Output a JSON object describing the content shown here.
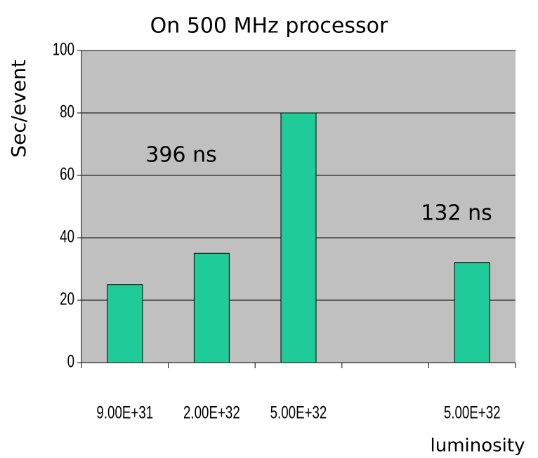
{
  "chart_data": {
    "type": "bar",
    "title": "On 500 MHz processor",
    "y_label": "Sec/event",
    "x_label": "luminosity",
    "annotations": [
      "396 ns",
      "132 ns"
    ],
    "categories": [
      "9.00E+31",
      "2.00E+32",
      "5.00E+32",
      null,
      "5.00E+32"
    ],
    "values": [
      25,
      35,
      80,
      null,
      32
    ],
    "color": "#1fcc99",
    "ylim": [
      0,
      100
    ],
    "yticks": [
      0,
      20,
      40,
      60,
      80,
      100
    ],
    "grid": true
  }
}
